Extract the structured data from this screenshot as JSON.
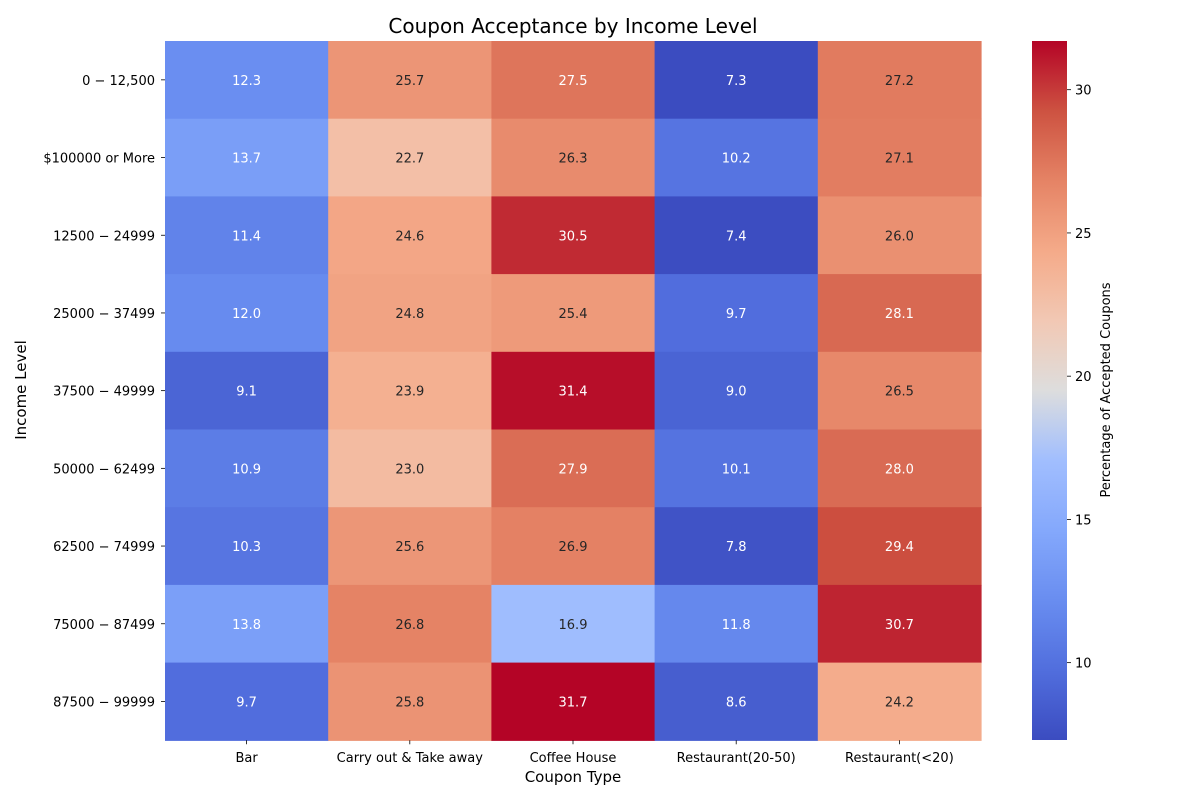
{
  "chart_data": {
    "type": "heatmap",
    "title": "Coupon Acceptance by Income Level",
    "xlabel": "Coupon Type",
    "ylabel": "Income Level",
    "x_categories": [
      "Bar",
      "Carry out & Take away",
      "Coffee House",
      "Restaurant(20-50)",
      "Restaurant(<20)"
    ],
    "y_categories": [
      "$0-$12,500",
      "$100000 or More",
      "$12500-$24999",
      "$25000-$37499",
      "$37500-$49999",
      "$50000-$62499",
      "$62500-$74999",
      "$75000-$87499",
      "$87500-$99999"
    ],
    "y_tick_labels": [
      "0 − 12,500",
      "$100000 or More",
      "12500 − 24999",
      "25000 − 37499",
      "37500 − 49999",
      "50000 − 62499",
      "62500 − 74999",
      "75000 − 87499",
      "87500 − 99999"
    ],
    "values": [
      [
        12.3,
        25.7,
        27.5,
        7.3,
        27.2
      ],
      [
        13.7,
        22.7,
        26.3,
        10.2,
        27.1
      ],
      [
        11.4,
        24.6,
        30.5,
        7.4,
        26.0
      ],
      [
        12.0,
        24.8,
        25.4,
        9.7,
        28.1
      ],
      [
        9.1,
        23.9,
        31.4,
        9.0,
        26.5
      ],
      [
        10.9,
        23.0,
        27.9,
        10.1,
        28.0
      ],
      [
        10.3,
        25.6,
        26.9,
        7.8,
        29.4
      ],
      [
        13.8,
        26.8,
        16.9,
        11.8,
        30.7
      ],
      [
        9.7,
        25.8,
        31.7,
        8.6,
        24.2
      ]
    ],
    "colormap": "coolwarm",
    "vmin": 7.3,
    "vmax": 31.7,
    "colorbar": {
      "label": "Percentage of Accepted Coupons",
      "ticks": [
        10,
        15,
        20,
        25,
        30
      ]
    },
    "annotation_format": "one decimal"
  }
}
